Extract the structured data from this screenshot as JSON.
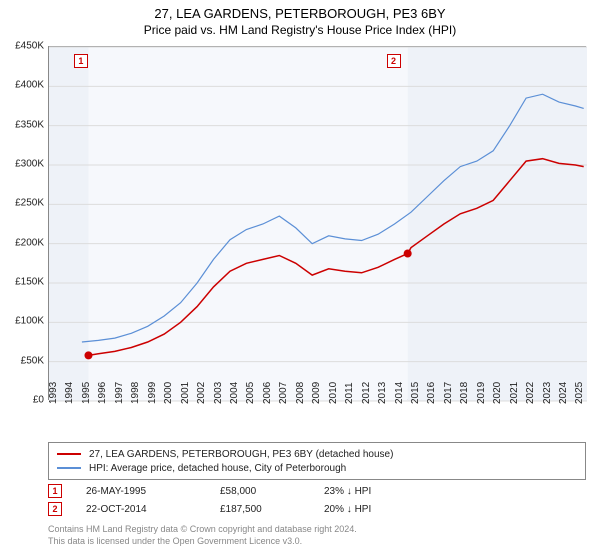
{
  "title": "27, LEA GARDENS, PETERBOROUGH, PE3 6BY",
  "subtitle": "Price paid vs. HM Land Registry's House Price Index (HPI)",
  "chart": {
    "type": "line",
    "background_color": "#ffffff",
    "shaded_color": "#eef2f8",
    "grid_color": "#dcdcdc",
    "border_color": "#888888",
    "x_years": [
      1993,
      1994,
      1995,
      1996,
      1997,
      1998,
      1999,
      2000,
      2001,
      2002,
      2003,
      2004,
      2005,
      2006,
      2007,
      2008,
      2009,
      2010,
      2011,
      2012,
      2013,
      2014,
      2015,
      2016,
      2017,
      2018,
      2019,
      2020,
      2021,
      2022,
      2023,
      2024,
      2025
    ],
    "xlim": [
      1993,
      2025.7
    ],
    "ylim": [
      0,
      450000
    ],
    "ytick_step": 50000,
    "ytick_labels": [
      "£0",
      "£50K",
      "£100K",
      "£150K",
      "£200K",
      "£250K",
      "£300K",
      "£350K",
      "£400K",
      "£450K"
    ],
    "title_fontsize": 13,
    "tick_fontsize": 10,
    "series": [
      {
        "name": "27, LEA GARDENS, PETERBOROUGH, PE3 6BY (detached house)",
        "color": "#cc0000",
        "line_width": 1.5,
        "data": [
          [
            1995.4,
            58000
          ],
          [
            1996,
            60000
          ],
          [
            1997,
            63000
          ],
          [
            1998,
            68000
          ],
          [
            1999,
            75000
          ],
          [
            2000,
            85000
          ],
          [
            2001,
            100000
          ],
          [
            2002,
            120000
          ],
          [
            2003,
            145000
          ],
          [
            2004,
            165000
          ],
          [
            2005,
            175000
          ],
          [
            2006,
            180000
          ],
          [
            2007,
            185000
          ],
          [
            2008,
            175000
          ],
          [
            2009,
            160000
          ],
          [
            2010,
            168000
          ],
          [
            2011,
            165000
          ],
          [
            2012,
            163000
          ],
          [
            2013,
            170000
          ],
          [
            2014,
            180000
          ],
          [
            2014.8,
            187500
          ],
          [
            2015,
            195000
          ],
          [
            2016,
            210000
          ],
          [
            2017,
            225000
          ],
          [
            2018,
            238000
          ],
          [
            2019,
            245000
          ],
          [
            2020,
            255000
          ],
          [
            2021,
            280000
          ],
          [
            2022,
            305000
          ],
          [
            2023,
            308000
          ],
          [
            2024,
            302000
          ],
          [
            2025,
            300000
          ],
          [
            2025.5,
            298000
          ]
        ]
      },
      {
        "name": "HPI: Average price, detached house, City of Peterborough",
        "color": "#5b8fd6",
        "line_width": 1.2,
        "data": [
          [
            1995,
            75000
          ],
          [
            1996,
            77000
          ],
          [
            1997,
            80000
          ],
          [
            1998,
            86000
          ],
          [
            1999,
            95000
          ],
          [
            2000,
            108000
          ],
          [
            2001,
            125000
          ],
          [
            2002,
            150000
          ],
          [
            2003,
            180000
          ],
          [
            2004,
            205000
          ],
          [
            2005,
            218000
          ],
          [
            2006,
            225000
          ],
          [
            2007,
            235000
          ],
          [
            2008,
            220000
          ],
          [
            2009,
            200000
          ],
          [
            2010,
            210000
          ],
          [
            2011,
            206000
          ],
          [
            2012,
            204000
          ],
          [
            2013,
            212000
          ],
          [
            2014,
            225000
          ],
          [
            2015,
            240000
          ],
          [
            2016,
            260000
          ],
          [
            2017,
            280000
          ],
          [
            2018,
            298000
          ],
          [
            2019,
            305000
          ],
          [
            2020,
            318000
          ],
          [
            2021,
            350000
          ],
          [
            2022,
            385000
          ],
          [
            2023,
            390000
          ],
          [
            2024,
            380000
          ],
          [
            2025,
            375000
          ],
          [
            2025.5,
            372000
          ]
        ]
      }
    ],
    "sale_markers": [
      {
        "n": "1",
        "x": 1995.4,
        "y": 58000,
        "box_year": 1995
      },
      {
        "n": "2",
        "x": 2014.8,
        "y": 187500,
        "box_year": 2014
      }
    ]
  },
  "legend": {
    "items": [
      {
        "color": "#cc0000",
        "label": "27, LEA GARDENS, PETERBOROUGH, PE3 6BY (detached house)"
      },
      {
        "color": "#5b8fd6",
        "label": "HPI: Average price, detached house, City of Peterborough"
      }
    ]
  },
  "sales": [
    {
      "n": "1",
      "date": "26-MAY-1995",
      "price": "£58,000",
      "pct": "23% ↓ HPI"
    },
    {
      "n": "2",
      "date": "22-OCT-2014",
      "price": "£187,500",
      "pct": "20% ↓ HPI"
    }
  ],
  "footer_line1": "Contains HM Land Registry data © Crown copyright and database right 2024.",
  "footer_line2": "This data is licensed under the Open Government Licence v3.0."
}
